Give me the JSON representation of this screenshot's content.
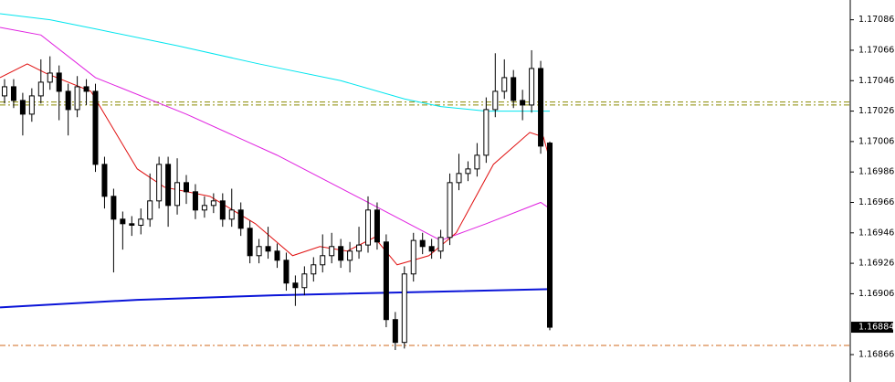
{
  "chart_data": {
    "type": "candlestick",
    "ylim": [
      1.16848,
      1.17099
    ],
    "yticks": [
      1.17086,
      1.17066,
      1.17046,
      1.17026,
      1.17006,
      1.16986,
      1.16966,
      1.16946,
      1.16926,
      1.16906,
      1.16866
    ],
    "last_price": 1.16884,
    "open": [
      1.17036,
      1.17042,
      1.17033,
      1.17024,
      1.17036,
      1.17045,
      1.17051,
      1.17039,
      1.17027,
      1.17042,
      1.17039,
      1.16991,
      1.1697,
      1.16955,
      1.16952,
      1.16951,
      1.16955,
      1.16967,
      1.16991,
      1.16964,
      1.16979,
      1.16973,
      1.16961,
      1.16964,
      1.16967,
      1.16955,
      1.16961,
      1.16949,
      1.16931,
      1.16937,
      1.16934,
      1.16928,
      1.16913,
      1.1691,
      1.16919,
      1.16925,
      1.16931,
      1.16937,
      1.16928,
      1.16934,
      1.16938,
      1.16961,
      1.1694,
      1.16889,
      1.16874,
      1.16919,
      1.16941,
      1.16937,
      1.16934,
      1.16943,
      1.16979,
      1.16985,
      1.16988,
      1.16997,
      1.17027,
      1.17039,
      1.17048,
      1.17033,
      1.1703,
      1.17054,
      1.17005
    ],
    "high": [
      1.17047,
      1.17047,
      1.17038,
      1.17041,
      1.1706,
      1.17062,
      1.17056,
      1.17044,
      1.17049,
      1.17047,
      1.17044,
      1.16996,
      1.16975,
      1.1696,
      1.16957,
      1.16962,
      1.16985,
      1.16996,
      1.16996,
      1.16995,
      1.16984,
      1.16978,
      1.1697,
      1.16972,
      1.16972,
      1.16975,
      1.16966,
      1.16954,
      1.16942,
      1.1695,
      1.16939,
      1.16933,
      1.16918,
      1.16924,
      1.1693,
      1.16945,
      1.16946,
      1.16942,
      1.1694,
      1.1695,
      1.1697,
      1.16966,
      1.16945,
      1.16894,
      1.16924,
      1.16946,
      1.16946,
      1.16942,
      1.16948,
      1.16985,
      1.16998,
      1.16993,
      1.17005,
      1.17035,
      1.17064,
      1.1706,
      1.17053,
      1.1704,
      1.17066,
      1.17059,
      1.17006
    ],
    "low": [
      1.17031,
      1.17028,
      1.1701,
      1.17019,
      1.17031,
      1.1704,
      1.1702,
      1.1701,
      1.17022,
      1.1703,
      1.16986,
      1.16962,
      1.1692,
      1.16935,
      1.16944,
      1.16945,
      1.1695,
      1.16962,
      1.1695,
      1.16958,
      1.16965,
      1.16955,
      1.16956,
      1.16959,
      1.1695,
      1.1695,
      1.16944,
      1.16926,
      1.16926,
      1.16929,
      1.16923,
      1.16908,
      1.16898,
      1.16905,
      1.16914,
      1.1692,
      1.16926,
      1.16923,
      1.1692,
      1.16929,
      1.16933,
      1.16935,
      1.16884,
      1.16869,
      1.1687,
      1.16914,
      1.16932,
      1.16929,
      1.16929,
      1.16938,
      1.16974,
      1.1698,
      1.16983,
      1.16992,
      1.17022,
      1.17034,
      1.17028,
      1.1702,
      1.17025,
      1.16998,
      1.16882
    ],
    "close": [
      1.17042,
      1.17033,
      1.17024,
      1.17036,
      1.17045,
      1.17051,
      1.17039,
      1.17027,
      1.17042,
      1.17039,
      1.16991,
      1.1697,
      1.16955,
      1.16952,
      1.16951,
      1.16955,
      1.16967,
      1.16991,
      1.16964,
      1.16979,
      1.16973,
      1.16961,
      1.16964,
      1.16967,
      1.16955,
      1.16961,
      1.16949,
      1.16931,
      1.16937,
      1.16934,
      1.16928,
      1.16913,
      1.1691,
      1.16919,
      1.16925,
      1.16931,
      1.16937,
      1.16928,
      1.16934,
      1.16938,
      1.16961,
      1.1694,
      1.16889,
      1.16874,
      1.16919,
      1.16941,
      1.16937,
      1.16934,
      1.16943,
      1.16979,
      1.16985,
      1.16988,
      1.16997,
      1.17027,
      1.17039,
      1.17048,
      1.17033,
      1.1703,
      1.17054,
      1.17003,
      1.16884
    ],
    "series": [
      {
        "color": "#00e5ee",
        "x": [
          -0.5,
          5,
          10,
          19,
          28,
          37,
          44,
          48,
          53,
          60
        ],
        "values": [
          1.1709,
          1.17086,
          1.1708,
          1.17069,
          1.17057,
          1.17046,
          1.17034,
          1.17029,
          1.17026,
          1.17026
        ]
      },
      {
        "color": "#e020e0",
        "x": [
          -0.5,
          4,
          10,
          20,
          30,
          40,
          48,
          53,
          59,
          60
        ],
        "values": [
          1.17081,
          1.17076,
          1.17048,
          1.17024,
          1.16997,
          1.16966,
          1.16941,
          1.16952,
          1.16966,
          1.16962
        ]
      },
      {
        "color": "#e01010",
        "x": [
          -0.5,
          2.5,
          4.5,
          9.5,
          12.5,
          14.6,
          17.6,
          22.6,
          27.6,
          31.7,
          34.7,
          37.7,
          40.7,
          43.2,
          46.7,
          49.7,
          53.8,
          57.8,
          59.3,
          60
        ],
        "values": [
          1.17048,
          1.17057,
          1.17051,
          1.17039,
          1.17009,
          1.16988,
          1.16976,
          1.1697,
          1.16952,
          1.16931,
          1.16937,
          1.16934,
          1.16943,
          1.16925,
          1.16931,
          1.16946,
          1.16991,
          1.17012,
          1.17009,
          1.16994
        ]
      },
      {
        "color": "#0a14d8",
        "x": [
          -0.5,
          14.6,
          29.7,
          60
        ],
        "values": [
          1.16897,
          1.16902,
          1.16905,
          1.16909
        ]
      }
    ],
    "hlines": [
      {
        "value": 1.17032,
        "color": "#8b8b00"
      },
      {
        "value": 1.1703,
        "color": "#8b8b00"
      },
      {
        "value": 1.16872,
        "color": "#d2691e"
      }
    ]
  }
}
